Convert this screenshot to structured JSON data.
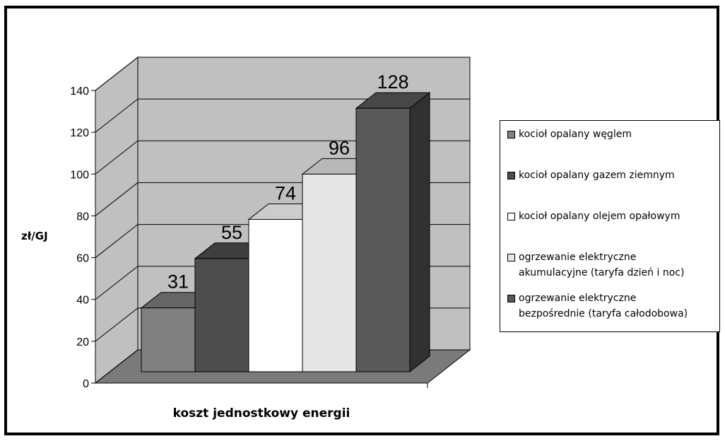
{
  "chart_data": {
    "type": "bar",
    "categories": [
      "kocioł opalany węglem",
      "kocioł opalany gazem ziemnym",
      "kocioł opalany olejem opałowym",
      "ogrzewanie elektryczne\nakumulacyjne (taryfa dzień i noc)",
      "ogrzewanie elektryczne\nbezpośrednie (taryfa całodobowa)"
    ],
    "values": [
      31,
      55,
      74,
      96,
      128
    ],
    "data_labels": [
      "31",
      "55",
      "74",
      "96",
      "128"
    ],
    "colors": [
      "#808080",
      "#4d4d4d",
      "#ffffff",
      "#e6e6e6",
      "#595959"
    ],
    "xlabel": "koszt jednostkowy energii",
    "ylabel": "zł/GJ",
    "ylim": [
      0,
      140
    ],
    "yticks": [
      "0",
      "20",
      "40",
      "60",
      "80",
      "100",
      "120",
      "140"
    ],
    "grid": true,
    "three_d": true,
    "legend_position": "right"
  }
}
